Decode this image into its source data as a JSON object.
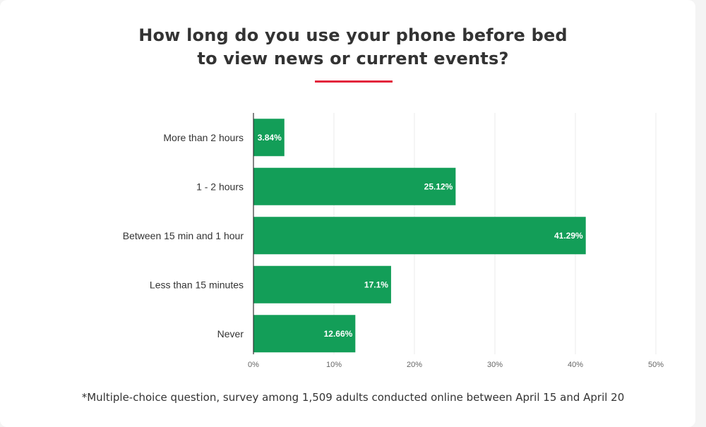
{
  "title_lines": [
    "How long do you use your phone before bed",
    "to view news or current events?"
  ],
  "footnote": "*Multiple-choice question, survey among 1,509 adults conducted online between April 15 and April 20",
  "colors": {
    "bar": "#139e58",
    "accent_rule": "#e3263c",
    "grid": "#ebebeb",
    "axis": "#333333",
    "tick_text": "#666666",
    "category_text": "#333333",
    "value_text": "#ffffff"
  },
  "chart_data": {
    "type": "bar",
    "orientation": "horizontal",
    "title": "How long do you use your phone before bed to view news or current events?",
    "categories": [
      "More than 2 hours",
      "1 - 2 hours",
      "Between 15 min and 1 hour",
      "Less than 15 minutes",
      "Never"
    ],
    "values": [
      3.84,
      25.12,
      41.29,
      17.1,
      12.66
    ],
    "data_labels": [
      "3.84%",
      "25.12%",
      "41.29%",
      "17.1%",
      "12.66%"
    ],
    "xlim": [
      0,
      50
    ],
    "x_ticks": [
      0,
      10,
      20,
      30,
      40,
      50
    ],
    "x_tick_labels": [
      "0%",
      "10%",
      "20%",
      "30%",
      "40%",
      "50%"
    ],
    "xlabel": "",
    "ylabel": "",
    "grid": true,
    "legend": "none"
  }
}
